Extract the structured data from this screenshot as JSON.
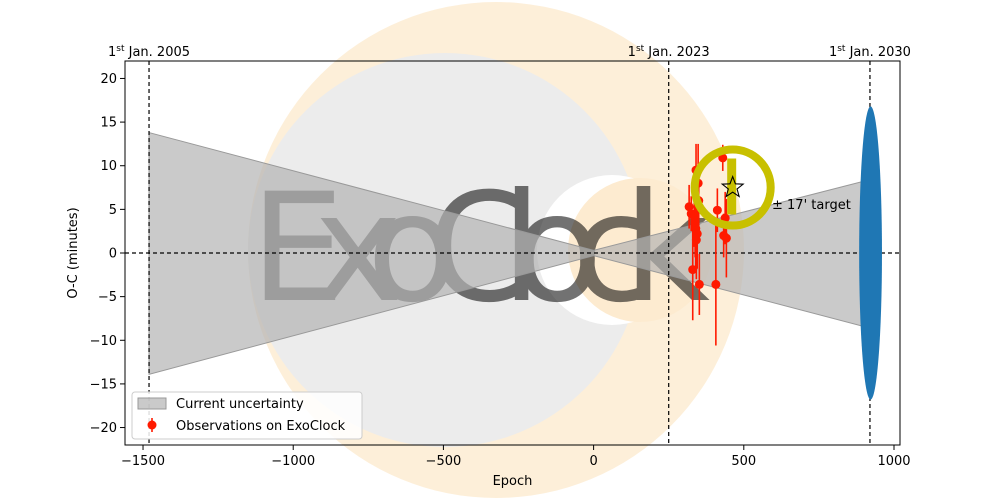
{
  "chart_data": {
    "type": "scatter",
    "xlabel": "Epoch",
    "ylabel": "O-C (minutes)",
    "xlim": [
      -1560,
      1020
    ],
    "ylim": [
      -22,
      22
    ],
    "x_ticks": [
      -1500,
      -1000,
      -500,
      0,
      500,
      1000
    ],
    "y_ticks": [
      -20,
      -15,
      -10,
      -5,
      0,
      5,
      10,
      15,
      20
    ],
    "grid": false,
    "date_markers": [
      {
        "epoch": -1480,
        "sup": "st",
        "label_pre": "1",
        "label_post": " Jan. 2005"
      },
      {
        "epoch": 250,
        "sup": "st",
        "label_pre": "1",
        "label_post": " Jan. 2023"
      },
      {
        "epoch": 920,
        "sup": "st",
        "label_pre": "1",
        "label_post": " Jan. 2030"
      }
    ],
    "uncertainty": {
      "name": "Current uncertainty",
      "color": "#b3b3b3",
      "polygon": [
        [
          -1480,
          13.8
        ],
        [
          0,
          0.3
        ],
        [
          920,
          8.4
        ],
        [
          920,
          -8.6
        ],
        [
          0,
          -0.3
        ],
        [
          -1480,
          -13.9
        ]
      ]
    },
    "observations": {
      "name": "Observations on ExoClock",
      "color": "#ff1a00",
      "points": [
        {
          "x": 318,
          "y": 5.3,
          "err": 2.5
        },
        {
          "x": 325,
          "y": 4.5,
          "err": 2.0
        },
        {
          "x": 330,
          "y": -1.9,
          "err": 5.8
        },
        {
          "x": 335,
          "y": 4.2,
          "err": 3.5
        },
        {
          "x": 338,
          "y": 3.5,
          "err": 4.0
        },
        {
          "x": 340,
          "y": 2.8,
          "err": 5.0
        },
        {
          "x": 341,
          "y": 9.5,
          "err": 3.0
        },
        {
          "x": 342,
          "y": 1.5,
          "err": 4.5
        },
        {
          "x": 345,
          "y": 2.2,
          "err": 4.0
        },
        {
          "x": 348,
          "y": 8.0,
          "err": 4.5
        },
        {
          "x": 350,
          "y": 6.0,
          "err": 3.0
        },
        {
          "x": 352,
          "y": -3.6,
          "err": 3.5
        },
        {
          "x": 407,
          "y": -3.6,
          "err": 7.0
        },
        {
          "x": 412,
          "y": 4.9,
          "err": 2.5
        },
        {
          "x": 430,
          "y": 10.9,
          "err": 1.5
        },
        {
          "x": 433,
          "y": 2.0,
          "err": 2.5
        },
        {
          "x": 438,
          "y": 4.0,
          "err": 3.0
        },
        {
          "x": 442,
          "y": 1.7,
          "err": 4.5
        }
      ]
    },
    "target": {
      "x": 463,
      "y": 7.5,
      "ring_color": "#c8c000",
      "label": "± 17' target"
    },
    "future_window": {
      "x": 922,
      "half_height": 16.8,
      "half_width_epoch": 38,
      "color": "#1f77b4"
    },
    "legend": {
      "placement": "lower-left",
      "entries": [
        "Current uncertainty",
        "Observations on ExoClock"
      ]
    },
    "watermark": "ExoClock"
  }
}
